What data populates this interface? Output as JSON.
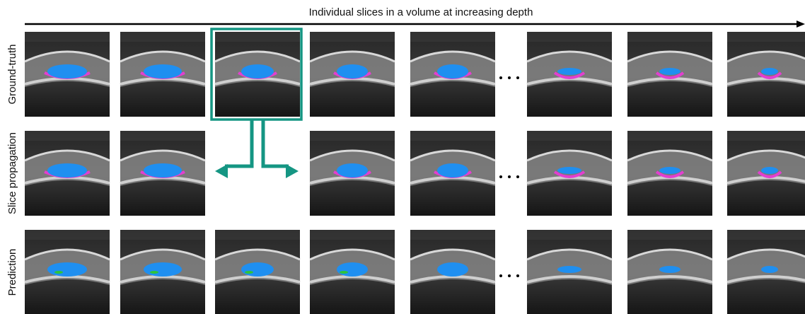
{
  "title": "Individual slices in a volume at increasing depth",
  "row_labels": [
    "Ground-truth",
    "Slice propagation",
    "Prediction"
  ]
}
